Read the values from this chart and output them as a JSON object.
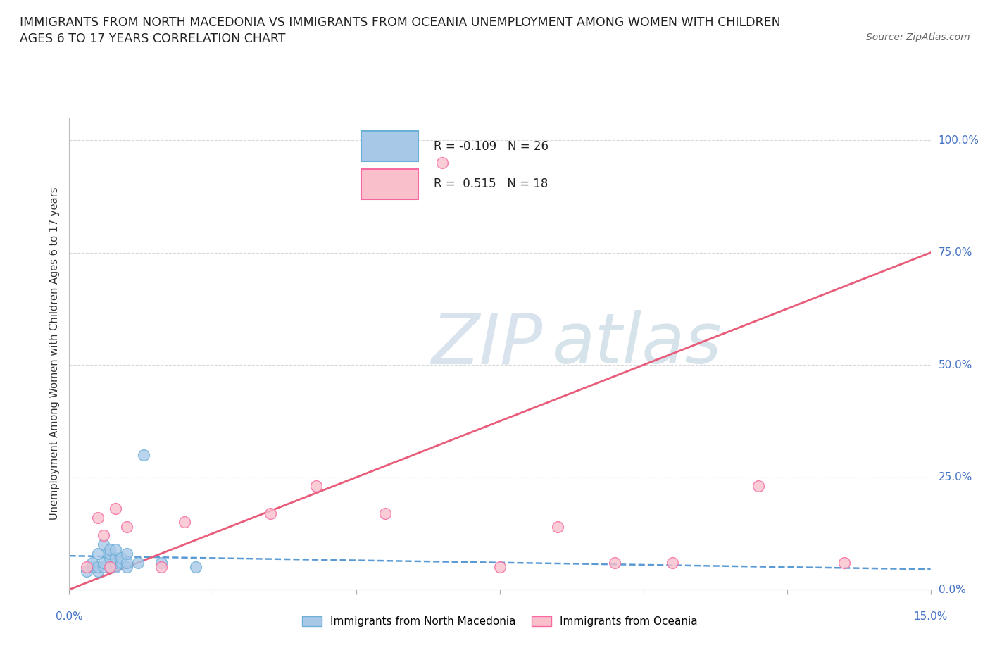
{
  "title_line1": "IMMIGRANTS FROM NORTH MACEDONIA VS IMMIGRANTS FROM OCEANIA UNEMPLOYMENT AMONG WOMEN WITH CHILDREN",
  "title_line2": "AGES 6 TO 17 YEARS CORRELATION CHART",
  "source": "Source: ZipAtlas.com",
  "ylabel": "Unemployment Among Women with Children Ages 6 to 17 years",
  "legend_r1_text": "R = -0.109   N = 26",
  "legend_r2_text": "R =  0.515   N = 18",
  "legend_label1": "Immigrants from North Macedonia",
  "legend_label2": "Immigrants from Oceania",
  "color_north_mac_fill": "#a8c8e8",
  "color_north_mac_edge": "#6baed6",
  "color_oceania_fill": "#f9c0cc",
  "color_oceania_edge": "#f768a1",
  "color_trend_nm": "#5b9bd5",
  "color_trend_oc": "#e85c7a",
  "xlim": [
    0.0,
    0.15
  ],
  "ylim": [
    0.0,
    1.05
  ],
  "yticks": [
    0.0,
    0.25,
    0.5,
    0.75,
    1.0
  ],
  "ytick_labels": [
    "0.0%",
    "25.0%",
    "50.0%",
    "75.0%",
    "100.0%"
  ],
  "xtick_left_label": "0.0%",
  "xtick_right_label": "15.0%",
  "north_mac_x": [
    0.003,
    0.004,
    0.004,
    0.005,
    0.005,
    0.005,
    0.006,
    0.006,
    0.006,
    0.007,
    0.007,
    0.007,
    0.007,
    0.008,
    0.008,
    0.008,
    0.008,
    0.009,
    0.009,
    0.01,
    0.01,
    0.01,
    0.012,
    0.013,
    0.016,
    0.022
  ],
  "north_mac_y": [
    0.04,
    0.05,
    0.06,
    0.04,
    0.05,
    0.08,
    0.05,
    0.06,
    0.1,
    0.05,
    0.07,
    0.08,
    0.09,
    0.05,
    0.06,
    0.07,
    0.09,
    0.06,
    0.07,
    0.05,
    0.06,
    0.08,
    0.06,
    0.3,
    0.06,
    0.05
  ],
  "oceania_x": [
    0.003,
    0.005,
    0.006,
    0.007,
    0.008,
    0.01,
    0.016,
    0.02,
    0.035,
    0.043,
    0.055,
    0.065,
    0.075,
    0.085,
    0.095,
    0.105,
    0.12,
    0.135
  ],
  "oceania_y": [
    0.05,
    0.16,
    0.12,
    0.05,
    0.18,
    0.14,
    0.05,
    0.15,
    0.17,
    0.23,
    0.17,
    0.95,
    0.05,
    0.14,
    0.06,
    0.06,
    0.23,
    0.06
  ],
  "nm_trend_x0": 0.0,
  "nm_trend_x1": 0.15,
  "nm_trend_y0": 0.075,
  "nm_trend_y1": 0.045,
  "oc_trend_x0": 0.0,
  "oc_trend_x1": 0.15,
  "oc_trend_y0": 0.0,
  "oc_trend_y1": 0.75,
  "watermark_zip": "ZIP",
  "watermark_atlas": "atlas",
  "background_color": "#ffffff",
  "grid_color": "#d8d8d8",
  "label_color": "#4472c4",
  "title_color": "#222222",
  "source_color": "#666666"
}
